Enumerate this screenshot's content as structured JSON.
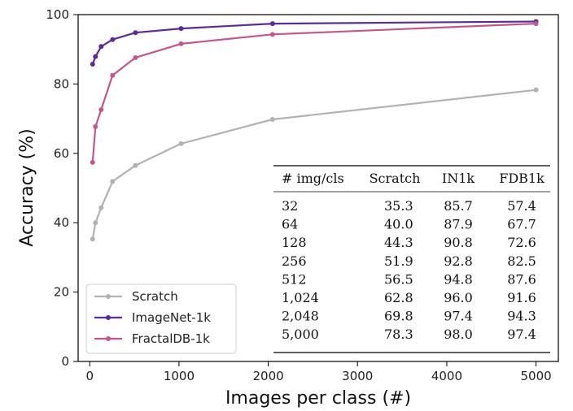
{
  "chart_data": {
    "type": "line",
    "title": "",
    "xlabel": "Images per class (#)",
    "ylabel": "Accuracy (%)",
    "xlim": [
      -130,
      5250
    ],
    "ylim": [
      0,
      100
    ],
    "x_ticks": [
      "0",
      "1000",
      "2000",
      "3000",
      "4000",
      "5000"
    ],
    "y_ticks": [
      "0",
      "20",
      "40",
      "60",
      "80",
      "100"
    ],
    "grid": false,
    "legend_position": "lower-left",
    "x": [
      32,
      64,
      128,
      256,
      512,
      1024,
      2048,
      5000
    ],
    "series": [
      {
        "name": "Scratch",
        "color": "#b2b2b2",
        "values": [
          35.3,
          40.0,
          44.3,
          51.9,
          56.5,
          62.8,
          69.8,
          78.3
        ]
      },
      {
        "name": "ImageNet-1k",
        "color": "#5b2d91",
        "values": [
          85.7,
          87.9,
          90.8,
          92.8,
          94.8,
          96.0,
          97.4,
          98.0
        ]
      },
      {
        "name": "FractalDB-1k",
        "color": "#c2578b",
        "values": [
          57.4,
          67.7,
          72.6,
          82.5,
          87.6,
          91.6,
          94.3,
          97.4
        ]
      }
    ],
    "table": {
      "headers": [
        "# img/cls",
        "Scratch",
        "IN1k",
        "FDB1k"
      ],
      "rows": [
        [
          "32",
          "35.3",
          "85.7",
          "57.4"
        ],
        [
          "64",
          "40.0",
          "87.9",
          "67.7"
        ],
        [
          "128",
          "44.3",
          "90.8",
          "72.6"
        ],
        [
          "256",
          "51.9",
          "92.8",
          "82.5"
        ],
        [
          "512",
          "56.5",
          "94.8",
          "87.6"
        ],
        [
          "1,024",
          "62.8",
          "96.0",
          "91.6"
        ],
        [
          "2,048",
          "69.8",
          "97.4",
          "94.3"
        ],
        [
          "5,000",
          "78.3",
          "98.0",
          "97.4"
        ]
      ]
    }
  }
}
